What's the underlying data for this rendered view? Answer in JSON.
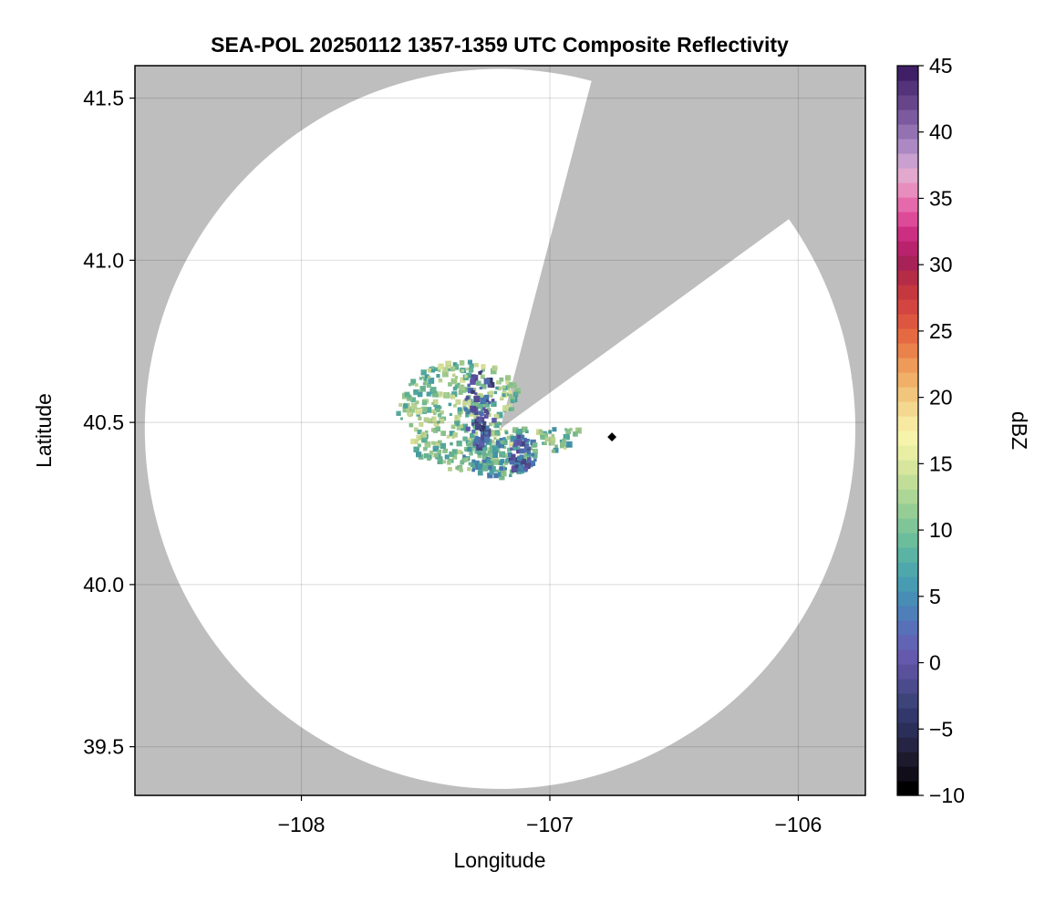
{
  "chart_data": {
    "type": "heatmap",
    "title": "SEA-POL 20250112 1357-1359 UTC Composite Reflectivity",
    "xlabel": "Longitude",
    "ylabel": "Latitude",
    "xlim": [
      -108.67,
      -105.73
    ],
    "ylim": [
      39.35,
      41.6
    ],
    "xticks": [
      -108,
      -107,
      -106
    ],
    "xtick_labels": [
      "−108",
      "−107",
      "−106"
    ],
    "yticks": [
      39.5,
      40.0,
      40.5,
      41.0,
      41.5
    ],
    "ytick_labels": [
      "39.5",
      "40.0",
      "40.5",
      "41.0",
      "41.5"
    ],
    "grid": true,
    "background_color": "#bebebe",
    "radar_site": {
      "lon": -107.2,
      "lat": 40.48
    },
    "coverage": {
      "range_deg_lon": 1.43,
      "range_deg_lat": 1.11,
      "blocked_sectors": [
        {
          "from_lon": -106.84,
          "from_lat": 41.53,
          "to_lon": -106.05,
          "to_lat": 41.12
        }
      ]
    },
    "marker": {
      "lon": -106.75,
      "lat": 40.455,
      "color": "#000000"
    },
    "echo_regions": [
      {
        "name": "main",
        "lon": -107.35,
        "lat": 40.52,
        "rlon": 0.26,
        "rlat": 0.17,
        "dbz": 14
      },
      {
        "name": "east",
        "lon": -107.0,
        "lat": 40.49,
        "rlon": 0.13,
        "rlat": 0.08,
        "dbz": 13
      },
      {
        "name": "south",
        "lon": -107.2,
        "lat": 40.4,
        "rlon": 0.16,
        "rlat": 0.07,
        "dbz": 10
      },
      {
        "name": "core",
        "lon": -107.28,
        "lat": 40.54,
        "rlon": 0.06,
        "rlat": 0.12,
        "dbz": 1
      },
      {
        "name": "core2",
        "lon": -107.12,
        "lat": 40.4,
        "rlon": 0.04,
        "rlat": 0.06,
        "dbz": 2
      }
    ],
    "colorbar": {
      "label": "dBZ",
      "min": -10,
      "max": 45,
      "ticks": [
        -10,
        -5,
        0,
        5,
        10,
        15,
        20,
        25,
        30,
        35,
        40,
        45
      ],
      "tick_labels": [
        "−10",
        "−5",
        "0",
        "5",
        "10",
        "15",
        "20",
        "25",
        "30",
        "35",
        "40",
        "45"
      ],
      "step": 1.25,
      "colors": [
        "#000000",
        "#110e1a",
        "#1e1a2e",
        "#262444",
        "#2b2e58",
        "#32386b",
        "#3c4479",
        "#4a4a8c",
        "#5a519d",
        "#6459ad",
        "#6163b5",
        "#5770b8",
        "#4e7fb8",
        "#478db6",
        "#479cb2",
        "#4ea8ab",
        "#5ab3a3",
        "#6bbd9c",
        "#7fc598",
        "#95cd95",
        "#abd696",
        "#c1de99",
        "#d6e69d",
        "#e8eea3",
        "#f6f4aa",
        "#f7e9a2",
        "#f4d88f",
        "#f2c57c",
        "#f0b068",
        "#ee9a58",
        "#ea824b",
        "#e56a42",
        "#dd5740",
        "#d34540",
        "#c5383f",
        "#b42c46",
        "#a72357",
        "#b8236c",
        "#cc2e82",
        "#dd4a98",
        "#e56aab",
        "#e88ebf",
        "#e2a8cd",
        "#c9a0cf",
        "#ad89c3",
        "#9372b2",
        "#7b5a9f",
        "#66458b",
        "#53337a",
        "#3f2066"
      ]
    }
  }
}
